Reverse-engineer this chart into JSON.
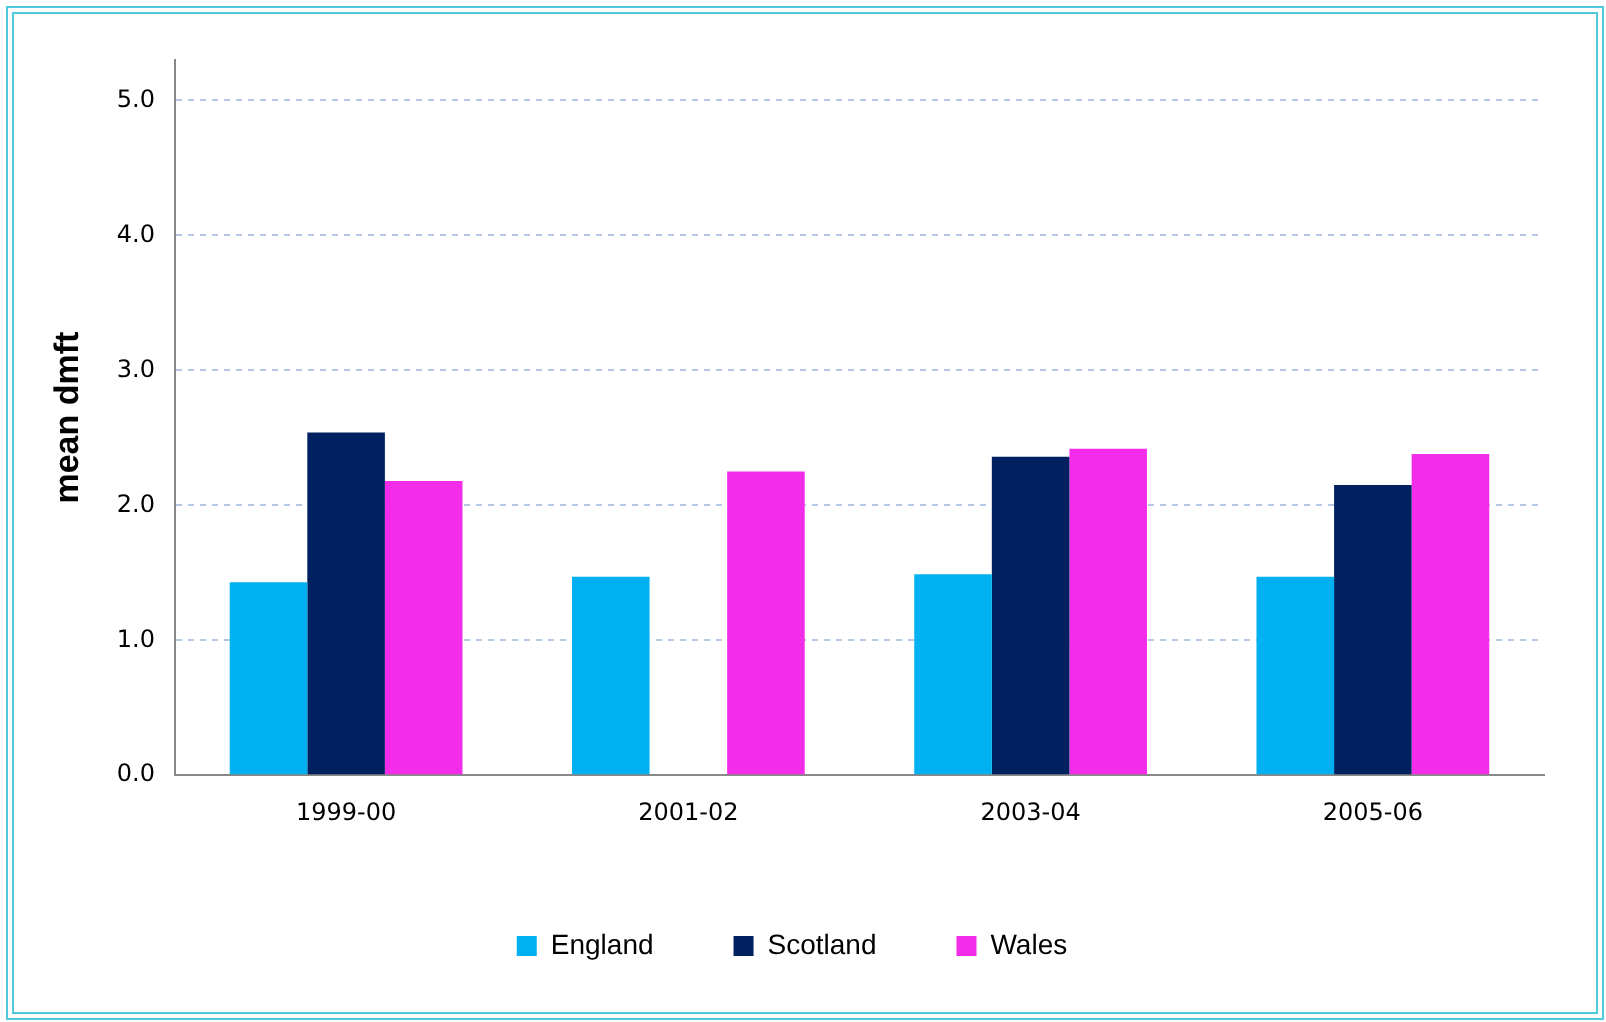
{
  "chart_data": {
    "type": "bar",
    "ylabel": "mean dmft",
    "categories": [
      "1999-00",
      "2001-02",
      "2003-04",
      "2005-06"
    ],
    "series": [
      {
        "name": "England",
        "color": "#00b0f0",
        "values": [
          1.43,
          1.47,
          1.49,
          1.47
        ]
      },
      {
        "name": "Scotland",
        "color": "#002060",
        "values": [
          2.54,
          null,
          2.36,
          2.15
        ]
      },
      {
        "name": "Wales",
        "color": "#f32cea",
        "values": [
          2.18,
          2.25,
          2.42,
          2.38
        ]
      }
    ],
    "ylim": [
      0,
      5.3
    ],
    "yticks": [
      {
        "value": 0,
        "label": "0.0"
      },
      {
        "value": 1,
        "label": "1.0"
      },
      {
        "value": 2,
        "label": "2.0"
      },
      {
        "value": 3,
        "label": "3.0"
      },
      {
        "value": 4,
        "label": "4.0"
      },
      {
        "value": 5,
        "label": "5.0"
      }
    ],
    "grid": "y",
    "legend": "bottom"
  }
}
